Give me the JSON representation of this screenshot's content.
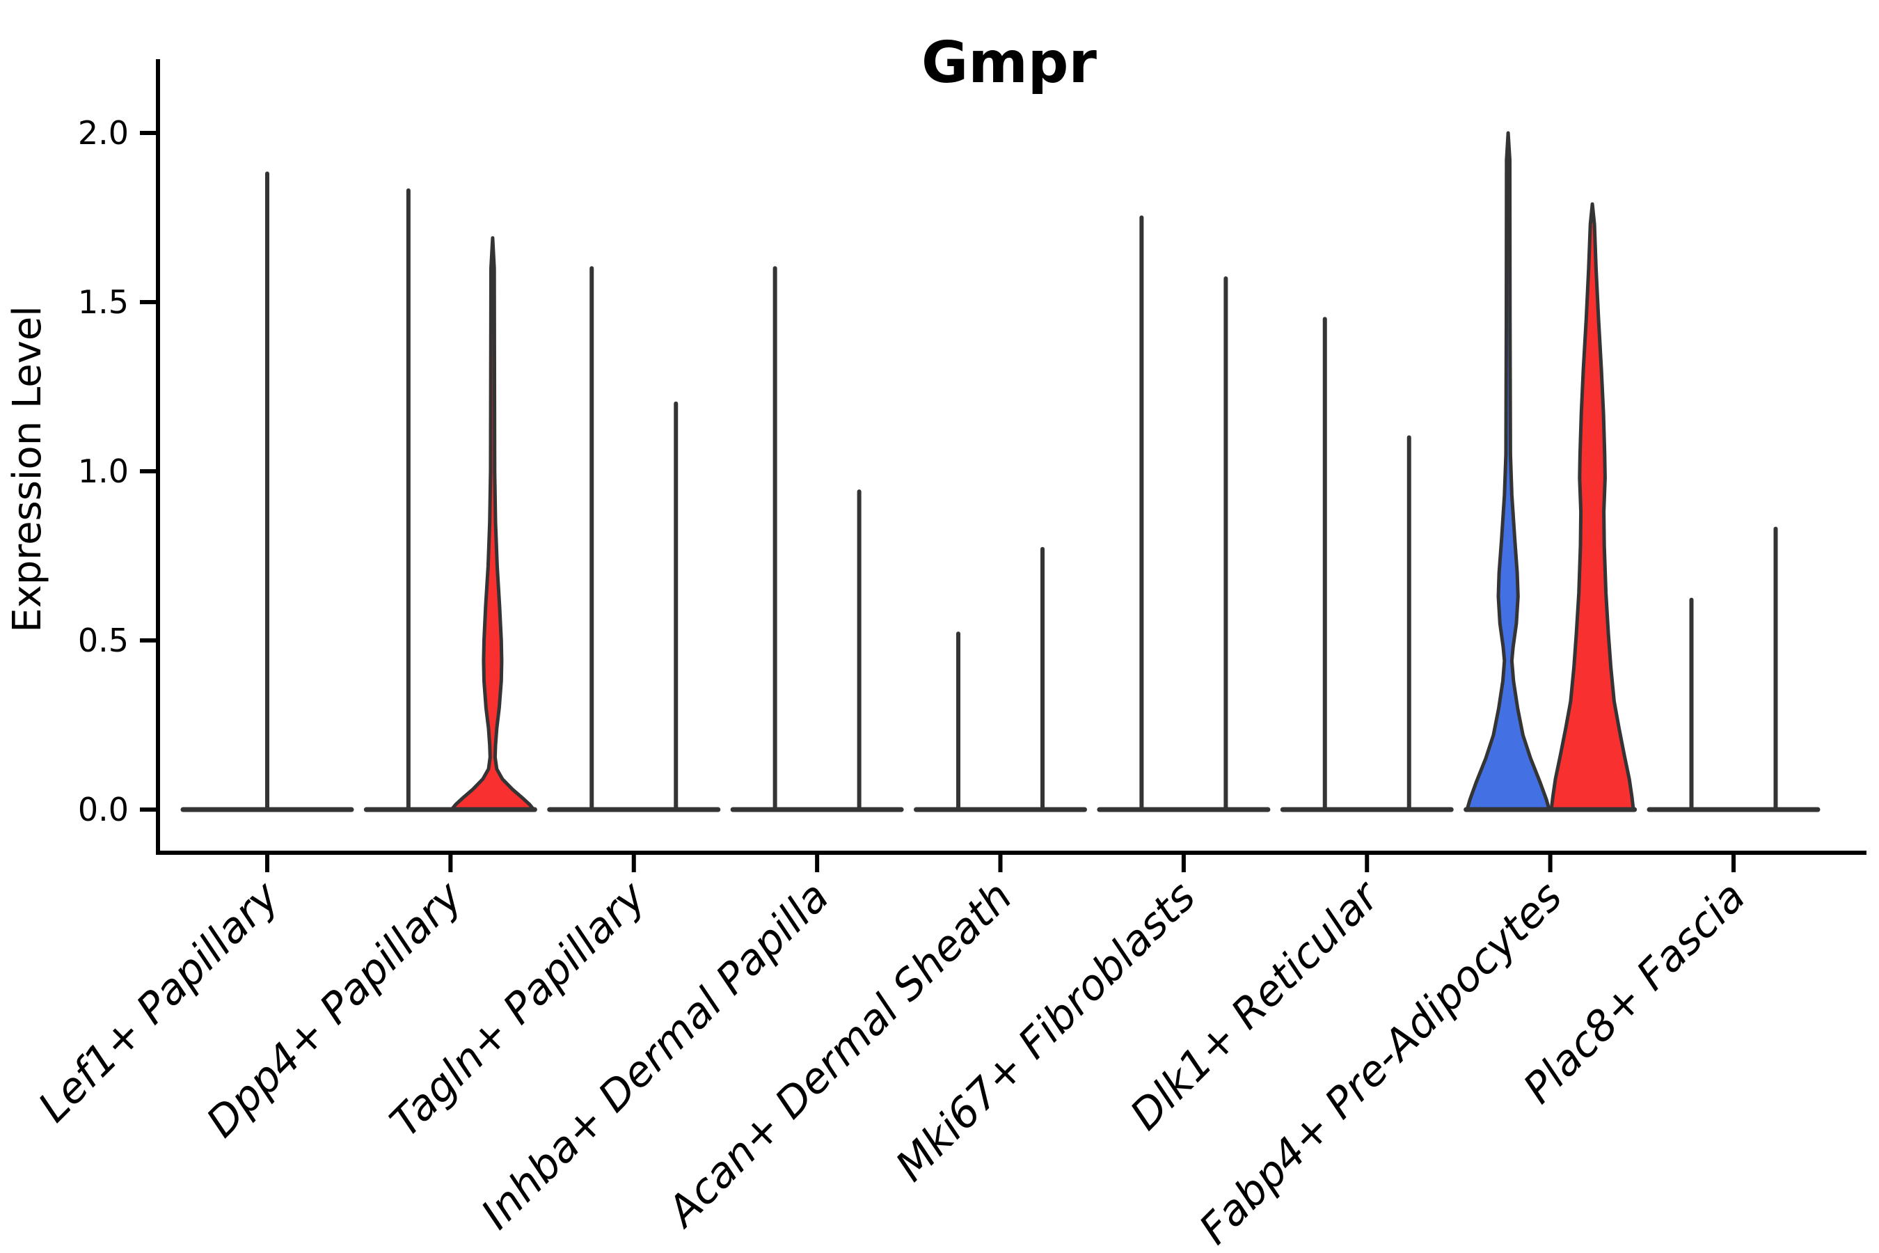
{
  "figure": {
    "title": "Gmpr",
    "ylabel": "Expression Level"
  },
  "colors": {
    "red": "#F93030",
    "blue": "#4371E3",
    "outline": "#343434",
    "axis": "#000000",
    "background": "#FFFFFF"
  },
  "chart_data": {
    "type": "violin",
    "title": "Gmpr",
    "ylabel": "Expression Level",
    "xlabel": "",
    "ylim": [
      0,
      2.05
    ],
    "yticks": [
      "0.0",
      "0.5",
      "1.0",
      "1.5",
      "2.0"
    ],
    "ytick_values": [
      0.0,
      0.5,
      1.0,
      1.5,
      2.0
    ],
    "grid": false,
    "legend_position": "none",
    "split_groups_per_category": 2,
    "categories": [
      "Lef1+ Papillary",
      "Dpp4+ Papillary",
      "Tagln+ Papillary",
      "Inhba+ Dermal Papilla",
      "Acan+ Dermal Sheath",
      "Mki67+ Fibroblasts",
      "Dlk1+ Reticular",
      "Fabp4+ Pre-Adipocytes",
      "Plac8+ Fascia"
    ],
    "violins": [
      {
        "category": "Lef1+ Papillary",
        "items": [
          {
            "pos": "center",
            "max": 1.88,
            "fill": "none"
          }
        ]
      },
      {
        "category": "Dpp4+ Papillary",
        "items": [
          {
            "pos": "left",
            "max": 1.83,
            "fill": "none"
          },
          {
            "pos": "right",
            "max": 1.69,
            "fill": "red",
            "profile": [
              [
                1.69,
                0
              ],
              [
                1.6,
                0.04
              ],
              [
                1.3,
                0.045
              ],
              [
                1.0,
                0.05
              ],
              [
                0.85,
                0.07
              ],
              [
                0.72,
                0.11
              ],
              [
                0.6,
                0.17
              ],
              [
                0.5,
                0.21
              ],
              [
                0.44,
                0.22
              ],
              [
                0.38,
                0.21
              ],
              [
                0.3,
                0.16
              ],
              [
                0.24,
                0.1
              ],
              [
                0.19,
                0.07
              ],
              [
                0.155,
                0.06
              ],
              [
                0.12,
                0.1
              ],
              [
                0.09,
                0.24
              ],
              [
                0.06,
                0.48
              ],
              [
                0.035,
                0.72
              ],
              [
                0.015,
                0.9
              ],
              [
                0,
                1.0
              ]
            ]
          }
        ]
      },
      {
        "category": "Tagln+ Papillary",
        "items": [
          {
            "pos": "left",
            "max": 1.6,
            "fill": "none"
          },
          {
            "pos": "right",
            "max": 1.2,
            "fill": "none"
          }
        ]
      },
      {
        "category": "Inhba+ Dermal Papilla",
        "items": [
          {
            "pos": "left",
            "max": 1.6,
            "fill": "none"
          },
          {
            "pos": "right",
            "max": 0.94,
            "fill": "none"
          }
        ]
      },
      {
        "category": "Acan+ Dermal Sheath",
        "items": [
          {
            "pos": "left",
            "max": 0.52,
            "fill": "none"
          },
          {
            "pos": "right",
            "max": 0.77,
            "fill": "none"
          }
        ]
      },
      {
        "category": "Mki67+ Fibroblasts",
        "items": [
          {
            "pos": "left",
            "max": 1.75,
            "fill": "none"
          },
          {
            "pos": "right",
            "max": 1.57,
            "fill": "none"
          }
        ]
      },
      {
        "category": "Dlk1+ Reticular",
        "items": [
          {
            "pos": "left",
            "max": 1.45,
            "fill": "none"
          },
          {
            "pos": "right",
            "max": 1.1,
            "fill": "none"
          }
        ]
      },
      {
        "category": "Fabp4+ Pre-Adipocytes",
        "items": [
          {
            "pos": "left",
            "max": 2.0,
            "fill": "blue",
            "profile": [
              [
                2.0,
                0
              ],
              [
                1.92,
                0.04
              ],
              [
                1.45,
                0.045
              ],
              [
                1.05,
                0.055
              ],
              [
                0.93,
                0.09
              ],
              [
                0.8,
                0.16
              ],
              [
                0.7,
                0.22
              ],
              [
                0.63,
                0.24
              ],
              [
                0.55,
                0.2
              ],
              [
                0.48,
                0.12
              ],
              [
                0.44,
                0.09
              ],
              [
                0.38,
                0.13
              ],
              [
                0.3,
                0.23
              ],
              [
                0.22,
                0.36
              ],
              [
                0.15,
                0.55
              ],
              [
                0.08,
                0.78
              ],
              [
                0.03,
                0.93
              ],
              [
                0,
                1.0
              ]
            ]
          },
          {
            "pos": "right",
            "max": 1.79,
            "fill": "red",
            "profile": [
              [
                1.79,
                0
              ],
              [
                1.73,
                0.05
              ],
              [
                1.6,
                0.09
              ],
              [
                1.45,
                0.15
              ],
              [
                1.3,
                0.22
              ],
              [
                1.17,
                0.27
              ],
              [
                1.05,
                0.3
              ],
              [
                0.98,
                0.31
              ],
              [
                0.88,
                0.28
              ],
              [
                0.78,
                0.29
              ],
              [
                0.64,
                0.33
              ],
              [
                0.52,
                0.39
              ],
              [
                0.42,
                0.45
              ],
              [
                0.32,
                0.53
              ],
              [
                0.24,
                0.65
              ],
              [
                0.16,
                0.78
              ],
              [
                0.09,
                0.9
              ],
              [
                0.04,
                0.96
              ],
              [
                0,
                1.0
              ]
            ]
          }
        ]
      },
      {
        "category": "Plac8+ Fascia",
        "items": [
          {
            "pos": "left",
            "max": 0.62,
            "fill": "none"
          },
          {
            "pos": "right",
            "max": 0.83,
            "fill": "none"
          }
        ]
      }
    ]
  }
}
